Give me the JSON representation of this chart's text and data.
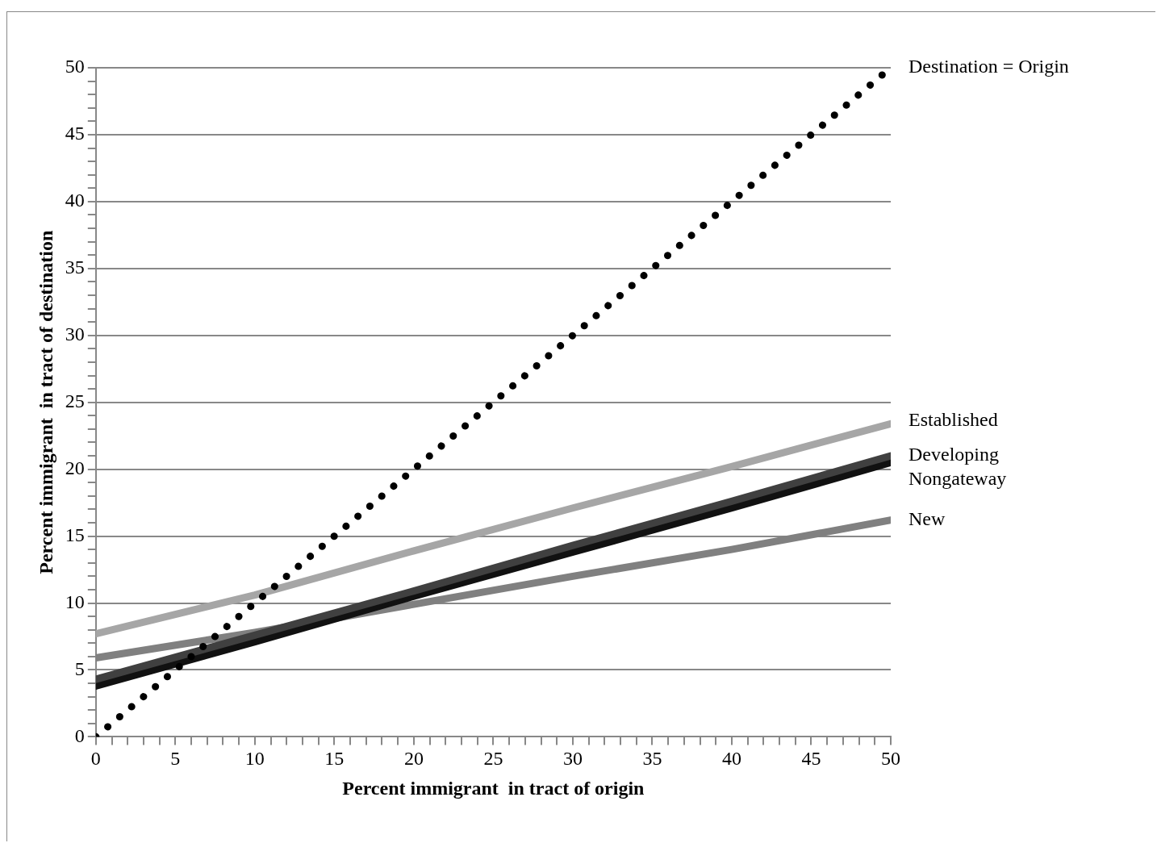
{
  "chart_data": {
    "type": "line",
    "xlabel": "Percent immigrant  in tract of origin",
    "ylabel": "Percent immigrant  in tract of destination",
    "xlim": [
      0,
      50
    ],
    "ylim": [
      0,
      50
    ],
    "xticks": [
      0,
      {
        "value": 1,
        "label": null
      },
      {
        "value": 2,
        "label": null
      },
      {
        "value": 3,
        "label": null
      },
      {
        "value": 4,
        "label": null
      },
      5,
      {
        "value": 6,
        "label": null
      },
      {
        "value": 7,
        "label": null
      },
      {
        "value": 8,
        "label": null
      },
      {
        "value": 9,
        "label": null
      },
      10,
      {
        "value": 11,
        "label": null
      },
      {
        "value": 12,
        "label": null
      },
      {
        "value": 13,
        "label": null
      },
      {
        "value": 14,
        "label": null
      },
      15,
      {
        "value": 16,
        "label": null
      },
      {
        "value": 17,
        "label": null
      },
      {
        "value": 18,
        "label": null
      },
      {
        "value": 19,
        "label": null
      },
      20,
      {
        "value": 21,
        "label": null
      },
      {
        "value": 22,
        "label": null
      },
      {
        "value": 23,
        "label": null
      },
      {
        "value": 24,
        "label": null
      },
      25,
      {
        "value": 26,
        "label": null
      },
      {
        "value": 27,
        "label": null
      },
      {
        "value": 28,
        "label": null
      },
      {
        "value": 29,
        "label": null
      },
      30,
      {
        "value": 31,
        "label": null
      },
      {
        "value": 32,
        "label": null
      },
      {
        "value": 33,
        "label": null
      },
      {
        "value": 34,
        "label": null
      },
      35,
      {
        "value": 36,
        "label": null
      },
      {
        "value": 37,
        "label": null
      },
      {
        "value": 38,
        "label": null
      },
      {
        "value": 39,
        "label": null
      },
      40,
      {
        "value": 41,
        "label": null
      },
      {
        "value": 42,
        "label": null
      },
      {
        "value": 43,
        "label": null
      },
      {
        "value": 44,
        "label": null
      },
      45,
      {
        "value": 46,
        "label": null
      },
      {
        "value": 47,
        "label": null
      },
      {
        "value": 48,
        "label": null
      },
      {
        "value": 49,
        "label": null
      },
      50
    ],
    "yticks": [
      0,
      {
        "value": 1,
        "label": null
      },
      {
        "value": 2,
        "label": null
      },
      {
        "value": 3,
        "label": null
      },
      {
        "value": 4,
        "label": null
      },
      5,
      {
        "value": 6,
        "label": null
      },
      {
        "value": 7,
        "label": null
      },
      {
        "value": 8,
        "label": null
      },
      {
        "value": 9,
        "label": null
      },
      10,
      {
        "value": 11,
        "label": null
      },
      {
        "value": 12,
        "label": null
      },
      {
        "value": 13,
        "label": null
      },
      {
        "value": 14,
        "label": null
      },
      15,
      {
        "value": 16,
        "label": null
      },
      {
        "value": 17,
        "label": null
      },
      {
        "value": 18,
        "label": null
      },
      {
        "value": 19,
        "label": null
      },
      20,
      {
        "value": 21,
        "label": null
      },
      {
        "value": 22,
        "label": null
      },
      {
        "value": 23,
        "label": null
      },
      {
        "value": 24,
        "label": null
      },
      25,
      {
        "value": 26,
        "label": null
      },
      {
        "value": 27,
        "label": null
      },
      {
        "value": 28,
        "label": null
      },
      {
        "value": 29,
        "label": null
      },
      30,
      {
        "value": 31,
        "label": null
      },
      {
        "value": 32,
        "label": null
      },
      {
        "value": 33,
        "label": null
      },
      {
        "value": 34,
        "label": null
      },
      35,
      {
        "value": 36,
        "label": null
      },
      {
        "value": 37,
        "label": null
      },
      {
        "value": 38,
        "label": null
      },
      {
        "value": 39,
        "label": null
      },
      40,
      {
        "value": 41,
        "label": null
      },
      {
        "value": 42,
        "label": null
      },
      {
        "value": 43,
        "label": null
      },
      {
        "value": 44,
        "label": null
      },
      45,
      {
        "value": 46,
        "label": null
      },
      {
        "value": 47,
        "label": null
      },
      {
        "value": 48,
        "label": null
      },
      {
        "value": 49,
        "label": null
      },
      50
    ],
    "grid": "y",
    "legend": false,
    "marker": "none",
    "series": [
      {
        "name": "Destination = Origin",
        "color": "#000000",
        "line_style": "dotted",
        "x": [
          0,
          50
        ],
        "values": [
          0,
          50
        ]
      },
      {
        "name": "Established",
        "color": "#a6a6a6",
        "line_style": "solid",
        "x": [
          0,
          10,
          20,
          30,
          40,
          50
        ],
        "values": [
          7.7,
          10.6,
          13.9,
          17.1,
          20.2,
          23.4
        ]
      },
      {
        "name": "Developing",
        "color": "#404040",
        "line_style": "solid",
        "x": [
          0,
          10,
          20,
          30,
          40,
          50
        ],
        "values": [
          4.3,
          7.6,
          10.9,
          14.3,
          17.6,
          21.0
        ]
      },
      {
        "name": "Nongateway",
        "color": "#111111",
        "line_style": "solid",
        "x": [
          0,
          10,
          20,
          30,
          40,
          50
        ],
        "values": [
          3.8,
          7.1,
          10.5,
          13.8,
          17.1,
          20.5
        ]
      },
      {
        "name": "New",
        "color": "#808080",
        "line_style": "solid",
        "x": [
          0,
          10,
          20,
          30,
          40,
          50
        ],
        "values": [
          5.9,
          7.8,
          9.9,
          12.0,
          14.0,
          16.2
        ]
      }
    ]
  }
}
